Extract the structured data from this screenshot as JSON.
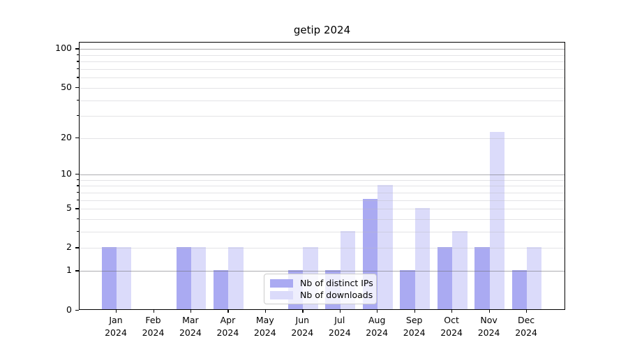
{
  "chart_data": {
    "type": "bar",
    "title": "getip 2024",
    "categories": [
      {
        "month": "Jan",
        "year": "2024"
      },
      {
        "month": "Feb",
        "year": "2024"
      },
      {
        "month": "Mar",
        "year": "2024"
      },
      {
        "month": "Apr",
        "year": "2024"
      },
      {
        "month": "May",
        "year": "2024"
      },
      {
        "month": "Jun",
        "year": "2024"
      },
      {
        "month": "Jul",
        "year": "2024"
      },
      {
        "month": "Aug",
        "year": "2024"
      },
      {
        "month": "Sep",
        "year": "2024"
      },
      {
        "month": "Oct",
        "year": "2024"
      },
      {
        "month": "Nov",
        "year": "2024"
      },
      {
        "month": "Dec",
        "year": "2024"
      }
    ],
    "series": [
      {
        "name": "Nb of distinct IPs",
        "color": "#aaaaf2",
        "values": [
          2,
          0,
          2,
          1,
          0,
          1,
          1,
          6,
          1,
          2,
          2,
          1
        ]
      },
      {
        "name": "Nb of downloads",
        "color": "#dbdbfa",
        "values": [
          2,
          0,
          2,
          2,
          0,
          2,
          3,
          8,
          5,
          3,
          22,
          2
        ]
      }
    ],
    "xlabel": "",
    "ylabel": "",
    "y_axis": {
      "scale": "log1p",
      "ylim": [
        0,
        112.4
      ],
      "tick_values": [
        0,
        1,
        2,
        5,
        10,
        20,
        50,
        100
      ],
      "tick_labels": [
        "0",
        "1",
        "2",
        "5",
        "10",
        "20",
        "50",
        "100"
      ],
      "major_grid_values": [
        1,
        10,
        100
      ],
      "minor_grid_values": [
        2,
        3,
        4,
        5,
        6,
        7,
        8,
        9,
        20,
        30,
        40,
        50,
        60,
        70,
        80,
        90
      ]
    },
    "grid": "horizontal, drawn over bars",
    "legend_position": "lower center",
    "colors": {
      "background": "#ffffff",
      "spine": "#000000",
      "major_grid": "#6e6e73",
      "minor_grid": "#c5c5cc"
    }
  }
}
